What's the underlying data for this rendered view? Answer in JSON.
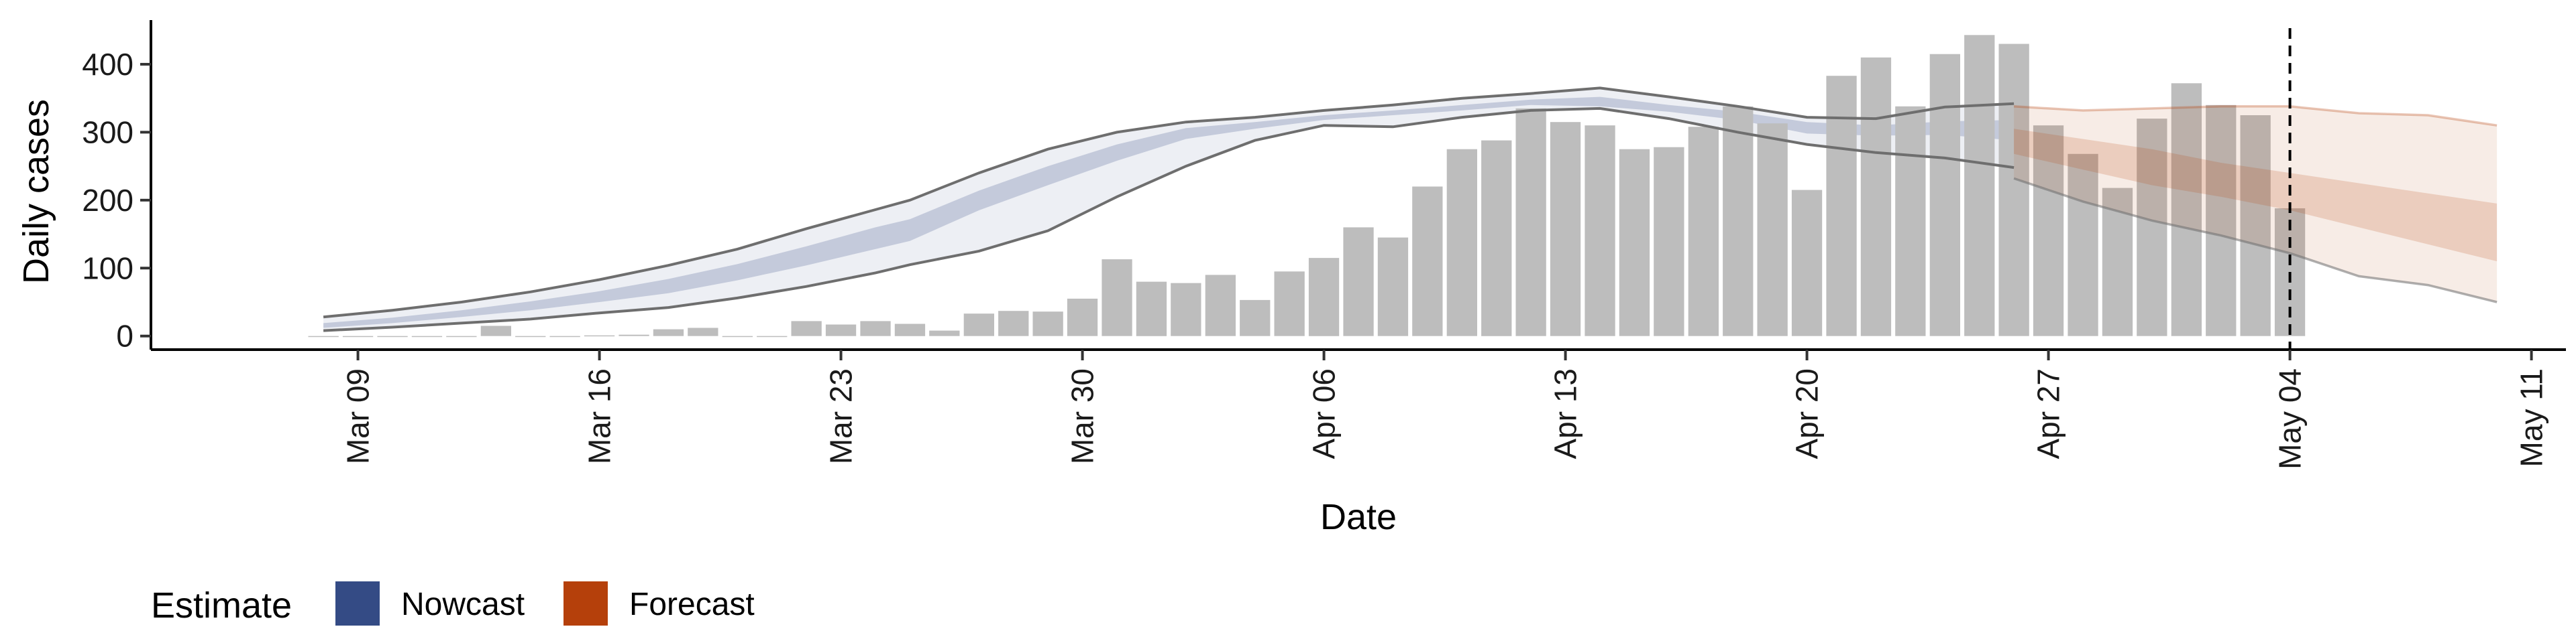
{
  "chart_data": {
    "type": "bar",
    "title": "",
    "xlabel": "Date",
    "ylabel": "Daily cases",
    "x_ticks": [
      "Mar 09",
      "Mar 16",
      "Mar 23",
      "Mar 30",
      "Apr 06",
      "Apr 13",
      "Apr 20",
      "Apr 27",
      "May 04",
      "May 11"
    ],
    "y_ticks": [
      "0",
      "100",
      "200",
      "300",
      "400"
    ],
    "ylim": [
      -20,
      465
    ],
    "xlim": [
      "2020-03-03",
      "2020-05-12"
    ],
    "grid": false,
    "legend_position": "bottom-left",
    "vline_date": "2020-05-04",
    "legend": {
      "title": "Estimate",
      "items": [
        {
          "label": "Nowcast",
          "color": "#344b85"
        },
        {
          "label": "Forecast",
          "color": "#b5400b"
        }
      ]
    },
    "colors": {
      "bars": "#bdbdbd",
      "nowcast": "#344b85",
      "forecast": "#b5400b",
      "band_outline": "#6e6e6e"
    },
    "observed_cases": {
      "dates": [
        "2020-03-08",
        "2020-03-09",
        "2020-03-10",
        "2020-03-11",
        "2020-03-12",
        "2020-03-13",
        "2020-03-14",
        "2020-03-15",
        "2020-03-16",
        "2020-03-17",
        "2020-03-18",
        "2020-03-19",
        "2020-03-20",
        "2020-03-21",
        "2020-03-22",
        "2020-03-23",
        "2020-03-24",
        "2020-03-25",
        "2020-03-26",
        "2020-03-27",
        "2020-03-28",
        "2020-03-29",
        "2020-03-30",
        "2020-03-31",
        "2020-04-01",
        "2020-04-02",
        "2020-04-03",
        "2020-04-04",
        "2020-04-05",
        "2020-04-06",
        "2020-04-07",
        "2020-04-08",
        "2020-04-09",
        "2020-04-10",
        "2020-04-11",
        "2020-04-12",
        "2020-04-13",
        "2020-04-14",
        "2020-04-15",
        "2020-04-16",
        "2020-04-17",
        "2020-04-18",
        "2020-04-19",
        "2020-04-20",
        "2020-04-21",
        "2020-04-22",
        "2020-04-23",
        "2020-04-24",
        "2020-04-25",
        "2020-04-26",
        "2020-04-27",
        "2020-04-28",
        "2020-04-29",
        "2020-04-30",
        "2020-05-01",
        "2020-05-02",
        "2020-05-03",
        "2020-05-04"
      ],
      "values": [
        0,
        0,
        0,
        0,
        0,
        15,
        0,
        0,
        1,
        2,
        10,
        12,
        0,
        0,
        22,
        17,
        22,
        18,
        8,
        33,
        37,
        36,
        55,
        113,
        80,
        78,
        90,
        53,
        95,
        115,
        160,
        145,
        220,
        275,
        288,
        335,
        315,
        310,
        275,
        278,
        308,
        338,
        313,
        215,
        383,
        410,
        338,
        415,
        443,
        430,
        310,
        268,
        218,
        320,
        372,
        340,
        325,
        188
      ],
      "bar_values_note": ""
    },
    "nowcast": {
      "dates": [
        "2020-03-08",
        "2020-03-10",
        "2020-03-12",
        "2020-03-14",
        "2020-03-16",
        "2020-03-18",
        "2020-03-20",
        "2020-03-22",
        "2020-03-24",
        "2020-03-25",
        "2020-03-27",
        "2020-03-29",
        "2020-03-31",
        "2020-04-02",
        "2020-04-04",
        "2020-04-06",
        "2020-04-08",
        "2020-04-10",
        "2020-04-12",
        "2020-04-14",
        "2020-04-16",
        "2020-04-18",
        "2020-04-20",
        "2020-04-22",
        "2020-04-24",
        "2020-04-26"
      ],
      "lower90": [
        8,
        13,
        19,
        25,
        34,
        42,
        56,
        73,
        93,
        105,
        125,
        155,
        205,
        250,
        288,
        310,
        308,
        322,
        332,
        335,
        320,
        300,
        282,
        270,
        262,
        248
      ],
      "upper90": [
        28,
        38,
        50,
        65,
        83,
        104,
        128,
        158,
        186,
        200,
        240,
        275,
        300,
        315,
        322,
        332,
        340,
        350,
        357,
        365,
        352,
        338,
        322,
        320,
        337,
        342
      ],
      "lower50": [
        12,
        19,
        28,
        38,
        50,
        63,
        82,
        104,
        128,
        140,
        185,
        222,
        258,
        290,
        305,
        318,
        325,
        332,
        340,
        338,
        330,
        318,
        298,
        295,
        296,
        288
      ],
      "upper50": [
        19,
        27,
        38,
        51,
        66,
        84,
        106,
        132,
        160,
        172,
        214,
        250,
        282,
        306,
        315,
        325,
        332,
        340,
        348,
        352,
        340,
        330,
        315,
        310,
        316,
        318
      ]
    },
    "forecast": {
      "dates": [
        "2020-04-26",
        "2020-04-28",
        "2020-04-30",
        "2020-05-02",
        "2020-05-04",
        "2020-05-06",
        "2020-05-08",
        "2020-05-10"
      ],
      "lower90": [
        232,
        198,
        170,
        148,
        122,
        88,
        75,
        50
      ],
      "upper90": [
        338,
        332,
        335,
        338,
        338,
        328,
        325,
        310
      ],
      "lower50": [
        268,
        245,
        222,
        205,
        185,
        160,
        135,
        110
      ],
      "upper50": [
        305,
        290,
        275,
        255,
        240,
        225,
        210,
        195
      ]
    }
  }
}
